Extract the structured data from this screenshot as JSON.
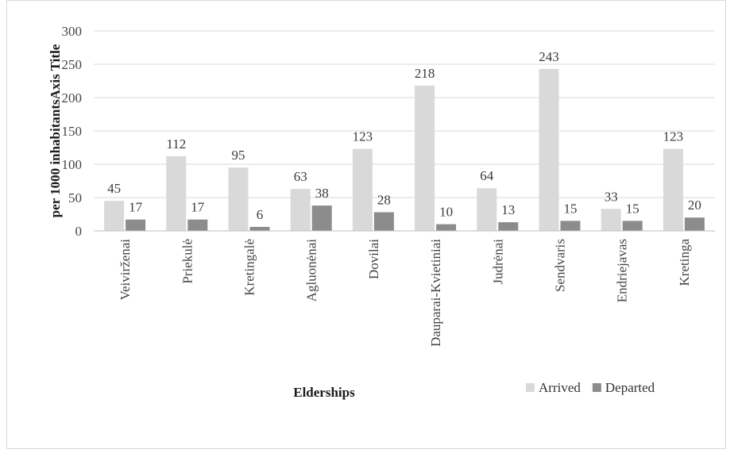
{
  "chart_data": {
    "type": "bar",
    "xlabel": "Elderships",
    "ylabel": "per 1000 inhabitantsAxis Title",
    "ylim": [
      0,
      300
    ],
    "yticks": [
      0,
      50,
      100,
      150,
      200,
      250,
      300
    ],
    "grid": true,
    "legend_position": "bottom-right",
    "categories": [
      "Veivirženai",
      "Priekulė",
      "Kretingalė",
      "Agluonėnai",
      "Dovilai",
      "Dauparai-Kvietiniai",
      "Judrėnai",
      "Sendvaris",
      "Endriejavas",
      "Kretinga"
    ],
    "series": [
      {
        "name": "Arrived",
        "color": "#d9d9d9",
        "values": [
          45,
          112,
          95,
          63,
          123,
          218,
          64,
          243,
          33,
          123
        ]
      },
      {
        "name": "Departed",
        "color": "#8c8c8c",
        "values": [
          17,
          17,
          6,
          38,
          28,
          10,
          13,
          15,
          15,
          20
        ]
      }
    ]
  }
}
